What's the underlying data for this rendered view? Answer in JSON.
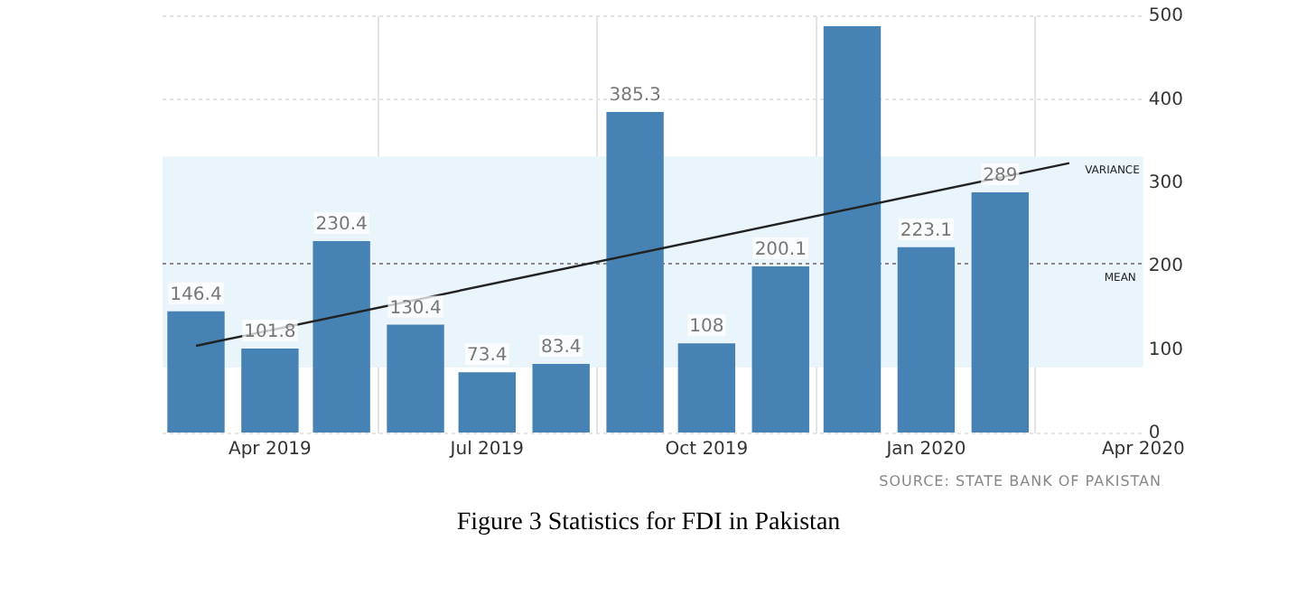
{
  "chart_data": {
    "type": "bar",
    "x": [
      "2019-03",
      "2019-04",
      "2019-05",
      "2019-06",
      "2019-07",
      "2019-08",
      "2019-09",
      "2019-10",
      "2019-11",
      "2019-12",
      "2020-01",
      "2020-02"
    ],
    "series": [
      {
        "color": "#4682b4",
        "values": [
          146.4,
          101.8,
          230.4,
          130.4,
          73.4,
          83.4,
          385.3,
          108,
          200.1,
          488,
          223.1,
          289
        ],
        "value_labels": [
          "146.4",
          "101.8",
          "230.4",
          "130.4",
          "73.4",
          "83.4",
          "385.3",
          "108",
          "200.1",
          null,
          "223.1",
          "289"
        ]
      },
      {
        "type": "line",
        "color": "#222222",
        "x": [
          "2019-03",
          "2020-03"
        ],
        "values": [
          105,
          324
        ]
      }
    ],
    "xlim": [
      "2019-02-15",
      "2020-04"
    ],
    "xticks": [
      {
        "value": "2019-04",
        "label": "Apr 2019"
      },
      {
        "value": "2019-07",
        "label": "Jul 2019"
      },
      {
        "value": "2019-10",
        "label": "Oct 2019"
      },
      {
        "value": "2020-01",
        "label": "Jan 2020"
      },
      {
        "value": "2020-04",
        "label": "Apr 2020"
      }
    ],
    "ylim": [
      0,
      500
    ],
    "yticks": [
      0,
      100,
      200,
      300,
      400,
      500
    ],
    "grid": true,
    "legend": false,
    "marker": "none",
    "ref_lines": [
      {
        "axis": "y",
        "value": 203.5,
        "label": "MEAN",
        "color": "#888888",
        "line_style": "dotted"
      }
    ],
    "bands": [
      {
        "axis": "y",
        "from": 79,
        "to": 332,
        "label": "VARIANCE",
        "color": "#eaf4fb"
      }
    ],
    "annotations": [
      "SOURCE: STATE BANK OF PAKISTAN",
      "Figure 3 Statistics for FDI in Pakistan"
    ]
  }
}
